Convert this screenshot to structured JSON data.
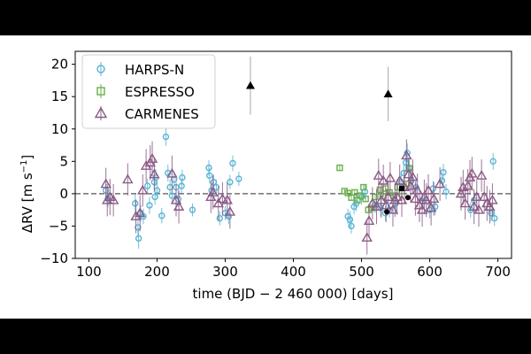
{
  "chart_data": {
    "type": "scatter",
    "xlabel": "time (BJD − 2 460 000) [days]",
    "ylabel": "ΔRV [m s",
    "ylabel_sup": "−1",
    "ylabel_close": "]",
    "xlim": [
      80,
      720
    ],
    "ylim": [
      -10,
      22
    ],
    "xticks": [
      100,
      200,
      300,
      400,
      500,
      600,
      700
    ],
    "yticks": [
      -10,
      -5,
      0,
      5,
      10,
      15,
      20
    ],
    "zero_line": true,
    "grid": false,
    "legend_position": "top-left",
    "colors": {
      "harps": "#5bb4d4",
      "espresso": "#6ab04c",
      "carmenes": "#8a5a85",
      "black": "#000000",
      "errorbar_gray": "#9a9a9a"
    },
    "series": [
      {
        "name": "HARPS-N",
        "marker": "circle",
        "color": "#5bb4d4",
        "points": [
          {
            "x": 125,
            "y": 0.5,
            "e": 1.2
          },
          {
            "x": 128,
            "y": -0.8,
            "e": 1.3
          },
          {
            "x": 168,
            "y": -1.5,
            "e": 1.4
          },
          {
            "x": 172,
            "y": -5.2,
            "e": 1.5
          },
          {
            "x": 173,
            "y": -6.9,
            "e": 1.6
          },
          {
            "x": 176,
            "y": -3.0,
            "e": 1.3
          },
          {
            "x": 180,
            "y": -3.5,
            "e": 1.2
          },
          {
            "x": 186,
            "y": 1.2,
            "e": 1.1
          },
          {
            "x": 189,
            "y": -1.8,
            "e": 1.3
          },
          {
            "x": 196,
            "y": 1.8,
            "e": 1.2
          },
          {
            "x": 197,
            "y": -0.5,
            "e": 1.2
          },
          {
            "x": 198,
            "y": 2.5,
            "e": 1.3
          },
          {
            "x": 200,
            "y": 0.5,
            "e": 1.2
          },
          {
            "x": 207,
            "y": -3.4,
            "e": 1.2
          },
          {
            "x": 213,
            "y": 8.8,
            "e": 1.4
          },
          {
            "x": 216,
            "y": 3.2,
            "e": 1.3
          },
          {
            "x": 219,
            "y": 1.0,
            "e": 1.2
          },
          {
            "x": 222,
            "y": -0.3,
            "e": 1.1
          },
          {
            "x": 225,
            "y": 2.2,
            "e": 1.2
          },
          {
            "x": 228,
            "y": 1.0,
            "e": 1.3
          },
          {
            "x": 231,
            "y": -0.8,
            "e": 1.2
          },
          {
            "x": 236,
            "y": 1.2,
            "e": 1.1
          },
          {
            "x": 237,
            "y": 2.5,
            "e": 1.2
          },
          {
            "x": 252,
            "y": -2.5,
            "e": 1.0
          },
          {
            "x": 276,
            "y": 4.0,
            "e": 1.2
          },
          {
            "x": 277,
            "y": 2.8,
            "e": 1.2
          },
          {
            "x": 280,
            "y": 0.5,
            "e": 1.1
          },
          {
            "x": 283,
            "y": 1.8,
            "e": 1.2
          },
          {
            "x": 287,
            "y": 1.0,
            "e": 1.2
          },
          {
            "x": 292,
            "y": -3.8,
            "e": 1.1
          },
          {
            "x": 300,
            "y": -3.0,
            "e": 1.1
          },
          {
            "x": 305,
            "y": -3.5,
            "e": 1.2
          },
          {
            "x": 307,
            "y": 1.8,
            "e": 1.1
          },
          {
            "x": 311,
            "y": 4.7,
            "e": 1.2
          },
          {
            "x": 320,
            "y": 2.3,
            "e": 1.1
          },
          {
            "x": 480,
            "y": -3.5,
            "e": 1.2
          },
          {
            "x": 483,
            "y": -4.0,
            "e": 1.3
          },
          {
            "x": 485,
            "y": -5.0,
            "e": 1.2
          },
          {
            "x": 489,
            "y": -2.0,
            "e": 1.2
          },
          {
            "x": 492,
            "y": -1.5,
            "e": 1.2
          },
          {
            "x": 500,
            "y": -0.5,
            "e": 1.2
          },
          {
            "x": 505,
            "y": 0.3,
            "e": 1.1
          },
          {
            "x": 520,
            "y": -1.8,
            "e": 1.2
          },
          {
            "x": 528,
            "y": -2.2,
            "e": 1.3
          },
          {
            "x": 535,
            "y": -3.0,
            "e": 1.2
          },
          {
            "x": 541,
            "y": -2.5,
            "e": 1.2
          },
          {
            "x": 550,
            "y": -1.5,
            "e": 1.2
          },
          {
            "x": 558,
            "y": 1.8,
            "e": 1.3
          },
          {
            "x": 562,
            "y": 3.2,
            "e": 1.3
          },
          {
            "x": 565,
            "y": 4.8,
            "e": 1.4
          },
          {
            "x": 567,
            "y": 6.3,
            "e": 1.5
          },
          {
            "x": 570,
            "y": 4.0,
            "e": 1.3
          },
          {
            "x": 573,
            "y": 2.0,
            "e": 1.2
          },
          {
            "x": 580,
            "y": 1.0,
            "e": 1.2
          },
          {
            "x": 590,
            "y": -1.2,
            "e": 1.2
          },
          {
            "x": 600,
            "y": -2.5,
            "e": 1.3
          },
          {
            "x": 605,
            "y": 0.8,
            "e": 1.2
          },
          {
            "x": 608,
            "y": -2.0,
            "e": 1.3
          },
          {
            "x": 618,
            "y": 2.0,
            "e": 1.2
          },
          {
            "x": 620,
            "y": 3.3,
            "e": 1.3
          },
          {
            "x": 624,
            "y": 0.3,
            "e": 1.2
          },
          {
            "x": 660,
            "y": -2.5,
            "e": 1.2
          },
          {
            "x": 665,
            "y": -1.0,
            "e": 1.3
          },
          {
            "x": 690,
            "y": -3.0,
            "e": 1.2
          },
          {
            "x": 693,
            "y": 5.0,
            "e": 1.3
          },
          {
            "x": 695,
            "y": -3.8,
            "e": 1.2
          }
        ]
      },
      {
        "name": "ESPRESSO",
        "marker": "square",
        "color": "#6ab04c",
        "points": [
          {
            "x": 468,
            "y": 4.0,
            "e": 0.4
          },
          {
            "x": 475,
            "y": 0.4,
            "e": 0.4
          },
          {
            "x": 480,
            "y": 0.1,
            "e": 0.4
          },
          {
            "x": 485,
            "y": -0.6,
            "e": 0.4
          },
          {
            "x": 490,
            "y": 0.2,
            "e": 0.4
          },
          {
            "x": 494,
            "y": -1.0,
            "e": 0.4
          },
          {
            "x": 498,
            "y": -0.3,
            "e": 0.4
          },
          {
            "x": 503,
            "y": 1.0,
            "e": 0.4
          },
          {
            "x": 506,
            "y": -0.8,
            "e": 0.4
          },
          {
            "x": 510,
            "y": -2.5,
            "e": 0.4
          },
          {
            "x": 515,
            "y": -2.2,
            "e": 0.4
          },
          {
            "x": 520,
            "y": -0.5,
            "e": 0.4
          },
          {
            "x": 527,
            "y": 0.6,
            "e": 0.4
          },
          {
            "x": 531,
            "y": -0.4,
            "e": 0.4
          },
          {
            "x": 535,
            "y": 0.8,
            "e": 0.4
          },
          {
            "x": 541,
            "y": 0.2,
            "e": 0.4
          },
          {
            "x": 547,
            "y": -0.3,
            "e": 0.4
          },
          {
            "x": 553,
            "y": 1.0,
            "e": 0.4
          },
          {
            "x": 559,
            "y": 0.4,
            "e": 0.4
          },
          {
            "x": 566,
            "y": 1.5,
            "e": 0.4
          },
          {
            "x": 571,
            "y": 3.9,
            "e": 0.4
          }
        ]
      },
      {
        "name": "CARMENES",
        "marker": "triangle",
        "color": "#8a5a85",
        "points": [
          {
            "x": 125,
            "y": 1.5,
            "e": 2.5
          },
          {
            "x": 127,
            "y": -1.0,
            "e": 2.5
          },
          {
            "x": 131,
            "y": -0.5,
            "e": 2.8
          },
          {
            "x": 136,
            "y": -1.0,
            "e": 2.5
          },
          {
            "x": 157,
            "y": 2.2,
            "e": 2.5
          },
          {
            "x": 169,
            "y": -3.5,
            "e": 2.6
          },
          {
            "x": 175,
            "y": -3.0,
            "e": 2.8
          },
          {
            "x": 179,
            "y": 0.5,
            "e": 2.5
          },
          {
            "x": 184,
            "y": 4.3,
            "e": 2.6
          },
          {
            "x": 190,
            "y": 4.8,
            "e": 2.7
          },
          {
            "x": 193,
            "y": 5.4,
            "e": 2.7
          },
          {
            "x": 196,
            "y": 3.0,
            "e": 2.5
          },
          {
            "x": 222,
            "y": 3.1,
            "e": 2.8
          },
          {
            "x": 228,
            "y": -1.0,
            "e": 2.5
          },
          {
            "x": 232,
            "y": -2.0,
            "e": 2.6
          },
          {
            "x": 279,
            "y": -0.5,
            "e": 2.5
          },
          {
            "x": 282,
            "y": 0.2,
            "e": 2.6
          },
          {
            "x": 290,
            "y": -1.5,
            "e": 2.7
          },
          {
            "x": 296,
            "y": -0.8,
            "e": 2.6
          },
          {
            "x": 303,
            "y": -1.0,
            "e": 2.8
          },
          {
            "x": 307,
            "y": -2.8,
            "e": 2.6
          },
          {
            "x": 508,
            "y": -6.8,
            "e": 2.6
          },
          {
            "x": 511,
            "y": -4.2,
            "e": 2.6
          },
          {
            "x": 516,
            "y": -1.5,
            "e": 2.5
          },
          {
            "x": 522,
            "y": -2.0,
            "e": 2.7
          },
          {
            "x": 525,
            "y": 2.8,
            "e": 2.6
          },
          {
            "x": 529,
            "y": -1.0,
            "e": 2.7
          },
          {
            "x": 532,
            "y": 2.0,
            "e": 2.5
          },
          {
            "x": 536,
            "y": -1.8,
            "e": 2.6
          },
          {
            "x": 539,
            "y": -0.5,
            "e": 2.6
          },
          {
            "x": 542,
            "y": 2.4,
            "e": 2.5
          },
          {
            "x": 546,
            "y": -2.5,
            "e": 2.6
          },
          {
            "x": 549,
            "y": -1.0,
            "e": 2.6
          },
          {
            "x": 552,
            "y": -0.5,
            "e": 2.7
          },
          {
            "x": 556,
            "y": 2.0,
            "e": 2.5
          },
          {
            "x": 559,
            "y": -1.0,
            "e": 2.6
          },
          {
            "x": 563,
            "y": 1.0,
            "e": 2.6
          },
          {
            "x": 566,
            "y": 5.9,
            "e": 2.5
          },
          {
            "x": 569,
            "y": 3.0,
            "e": 2.6
          },
          {
            "x": 572,
            "y": 1.2,
            "e": 2.6
          },
          {
            "x": 575,
            "y": 2.6,
            "e": 2.7
          },
          {
            "x": 579,
            "y": -0.8,
            "e": 2.6
          },
          {
            "x": 582,
            "y": 0.5,
            "e": 2.6
          },
          {
            "x": 585,
            "y": -1.8,
            "e": 2.6
          },
          {
            "x": 589,
            "y": -2.5,
            "e": 2.6
          },
          {
            "x": 592,
            "y": -0.5,
            "e": 2.7
          },
          {
            "x": 595,
            "y": -1.0,
            "e": 2.6
          },
          {
            "x": 598,
            "y": 0.5,
            "e": 2.5
          },
          {
            "x": 602,
            "y": -2.2,
            "e": 2.7
          },
          {
            "x": 606,
            "y": -0.8,
            "e": 2.6
          },
          {
            "x": 615,
            "y": 1.5,
            "e": 2.6
          },
          {
            "x": 646,
            "y": 0.0,
            "e": 2.6
          },
          {
            "x": 649,
            "y": 1.0,
            "e": 2.7
          },
          {
            "x": 652,
            "y": -1.5,
            "e": 2.5
          },
          {
            "x": 656,
            "y": 1.2,
            "e": 2.6
          },
          {
            "x": 659,
            "y": 2.5,
            "e": 2.7
          },
          {
            "x": 662,
            "y": 3.1,
            "e": 2.6
          },
          {
            "x": 665,
            "y": -2.0,
            "e": 2.7
          },
          {
            "x": 669,
            "y": -0.5,
            "e": 2.6
          },
          {
            "x": 672,
            "y": -2.5,
            "e": 2.6
          },
          {
            "x": 676,
            "y": 2.8,
            "e": 2.5
          },
          {
            "x": 680,
            "y": -0.5,
            "e": 2.6
          },
          {
            "x": 684,
            "y": -1.5,
            "e": 2.7
          },
          {
            "x": 688,
            "y": -2.0,
            "e": 2.6
          },
          {
            "x": 692,
            "y": -1.0,
            "e": 2.6
          }
        ]
      },
      {
        "name": "",
        "marker": "triangle-filled",
        "color": "#000000",
        "points": [
          {
            "x": 337,
            "y": 16.7,
            "e": 4.5
          },
          {
            "x": 539,
            "y": 15.4,
            "e": 4.2
          }
        ]
      },
      {
        "name": "",
        "marker": "circle-filled",
        "color": "#000000",
        "points": [
          {
            "x": 537,
            "y": -2.8,
            "e": 0.4
          },
          {
            "x": 568,
            "y": -0.6,
            "e": 0.4
          }
        ]
      },
      {
        "name": "",
        "marker": "square-filled",
        "color": "#000000",
        "points": [
          {
            "x": 559,
            "y": 0.8,
            "e": 0.4
          }
        ]
      }
    ]
  }
}
